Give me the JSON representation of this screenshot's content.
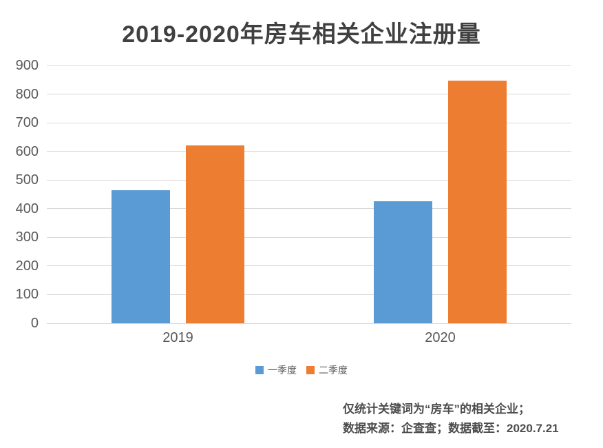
{
  "chart_data": {
    "type": "bar",
    "title": "2019-2020年房车相关企业注册量",
    "categories": [
      "2019",
      "2020"
    ],
    "series": [
      {
        "name": "一季度",
        "color": "#5B9BD5",
        "values": [
          465,
          425
        ]
      },
      {
        "name": "二季度",
        "color": "#ED7D31",
        "values": [
          620,
          848
        ]
      }
    ],
    "xlabel": "",
    "ylabel": "",
    "ylim": [
      0,
      900
    ],
    "ytick_step": 100,
    "yticks": [
      0,
      100,
      200,
      300,
      400,
      500,
      600,
      700,
      800,
      900
    ],
    "grid": true,
    "legend_position": "bottom",
    "colors": {
      "title": "#404040",
      "axis_labels": "#595959",
      "gridline": "#D9D9D9",
      "background": "#FFFFFF"
    }
  },
  "footnote": {
    "line1": "仅统计关键词为“房车”的相关企业；",
    "line2": "数据来源：企查查；数据截至：2020.7.21"
  }
}
